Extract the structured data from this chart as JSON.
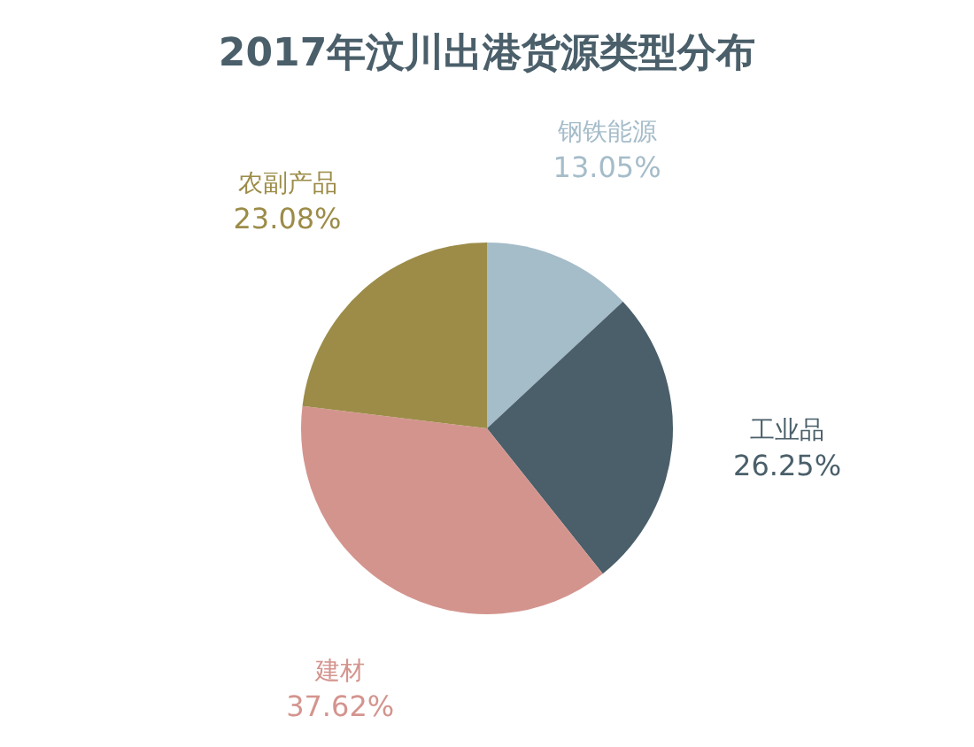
{
  "chart_data": {
    "type": "pie",
    "title": "2017年汶川出港货源类型分布",
    "categories": [
      "钢铁能源",
      "工业品",
      "建材",
      "农副产品"
    ],
    "values": [
      13.05,
      26.25,
      37.62,
      23.08
    ],
    "value_labels": [
      "13.05%",
      "26.25%",
      "37.62%",
      "23.08%"
    ],
    "colors": [
      "#a5bcc9",
      "#4a5f6a",
      "#d4948e",
      "#9c8c48"
    ],
    "legend": false
  }
}
